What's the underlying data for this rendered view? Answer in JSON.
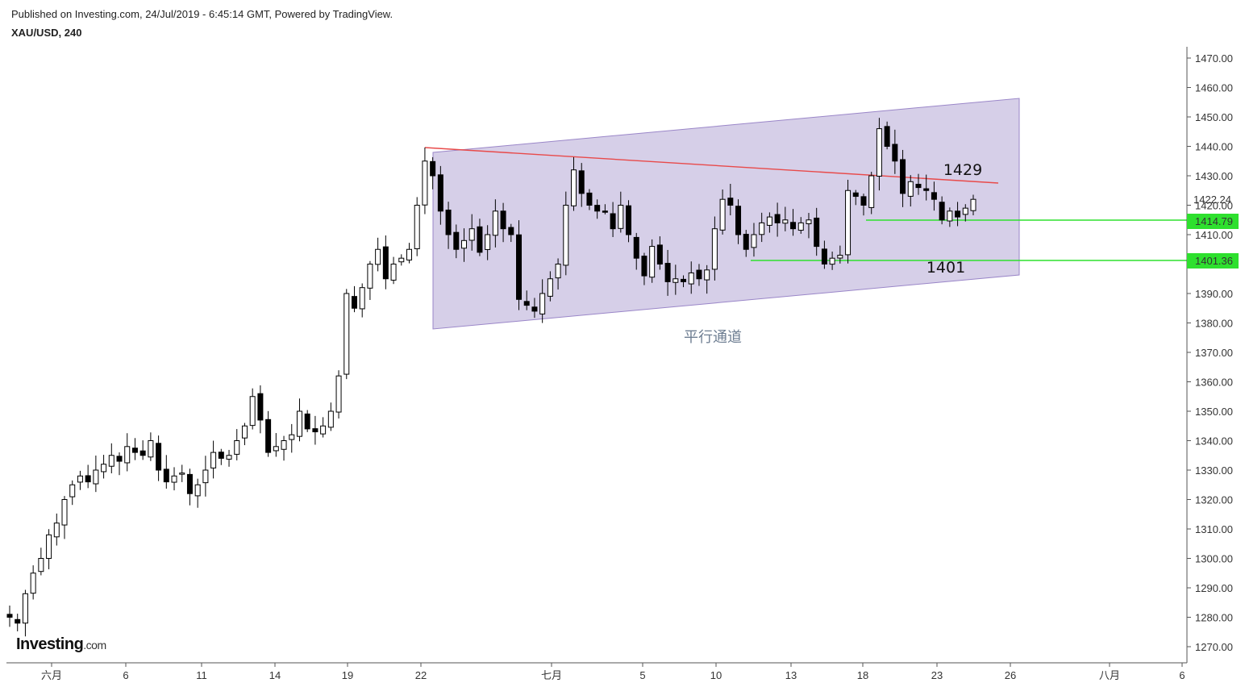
{
  "header": {
    "published": "Published on Investing.com, 24/Jul/2019 - 6:45:14 GMT, Powered by TradingView.",
    "symbol": "XAU/USD, 240"
  },
  "logo": {
    "main": "Investing",
    "suffix": ".com"
  },
  "colors": {
    "channel_fill": "#d6cfe8",
    "channel_border": "#9a86c8",
    "resistance_line": "#e84a4a",
    "support_line": "#2ee02e",
    "price_badge": "#2ee02e",
    "candle_up": "#ffffff",
    "candle_down": "#000000"
  },
  "chart_data": {
    "type": "candlestick",
    "title": "",
    "ylim": [
      1265,
      1475
    ],
    "y_ticks": [
      "1270.00",
      "1280.00",
      "1290.00",
      "1300.00",
      "1310.00",
      "1320.00",
      "1330.00",
      "1340.00",
      "1350.00",
      "1360.00",
      "1370.00",
      "1380.00",
      "1390.00",
      "1400.00",
      "1410.00",
      "1420.00",
      "1430.00",
      "1440.00",
      "1450.00",
      "1460.00",
      "1470.00"
    ],
    "x_ticks": [
      "六月",
      "6",
      "11",
      "14",
      "19",
      "22",
      "七月",
      "5",
      "10",
      "13",
      "18",
      "23",
      "26",
      "八月",
      "6"
    ],
    "current_price_label": "1422.24",
    "price_badges": [
      "1414.79",
      "1401.36"
    ],
    "annotations": {
      "channel_label": "平行通道",
      "resistance_level": "1429",
      "support_level": "1401"
    },
    "series_close_approx": [
      1280,
      1278,
      1288,
      1295,
      1300,
      1308,
      1312,
      1320,
      1325,
      1328,
      1326,
      1330,
      1332,
      1335,
      1333,
      1338,
      1336,
      1335,
      1340,
      1330,
      1326,
      1328,
      1329,
      1322,
      1325,
      1330,
      1336,
      1334,
      1335,
      1340,
      1345,
      1355,
      1347,
      1336,
      1338,
      1340,
      1342,
      1350,
      1344,
      1343,
      1345,
      1350,
      1362,
      1390,
      1385,
      1392,
      1400,
      1405,
      1395,
      1400,
      1402,
      1405,
      1420,
      1435,
      1430,
      1418,
      1410,
      1405,
      1408,
      1412,
      1404,
      1410,
      1418,
      1412,
      1410,
      1388,
      1386,
      1384,
      1390,
      1395,
      1400,
      1420,
      1432,
      1424,
      1420,
      1418,
      1418,
      1412,
      1420,
      1410,
      1402,
      1396,
      1406,
      1400,
      1394,
      1395,
      1394,
      1397,
      1395,
      1398,
      1412,
      1422,
      1420,
      1410,
      1405,
      1410,
      1414,
      1416,
      1414,
      1415,
      1412,
      1414,
      1415,
      1406,
      1400,
      1402,
      1403,
      1425,
      1423,
      1420,
      1430,
      1446,
      1440,
      1435,
      1424,
      1428,
      1426,
      1425,
      1422,
      1415,
      1418,
      1416,
      1419,
      1422
    ]
  }
}
